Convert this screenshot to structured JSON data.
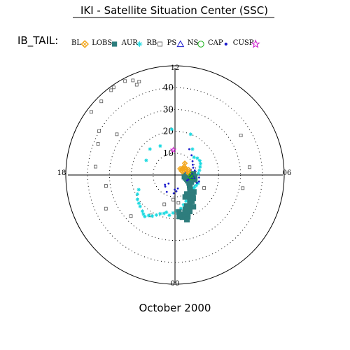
{
  "header": {
    "title": "IKI - Satellite Situation Center (SSC)",
    "period": "October 2000"
  },
  "legend": {
    "prefix": "IB_TAIL:",
    "items": [
      {
        "label": "BL",
        "marker": "diamond-star",
        "color": "#f2a51a"
      },
      {
        "label": "LOBS",
        "marker": "square-small",
        "color": "#2e7d7d"
      },
      {
        "label": "AUR",
        "marker": "asterisk",
        "color": "#19d9e0"
      },
      {
        "label": "RB",
        "marker": "square-open",
        "color": "#555555"
      },
      {
        "label": "PS",
        "marker": "triangle-open",
        "color": "#1a1acc"
      },
      {
        "label": "NS",
        "marker": "circle-open",
        "color": "#19b319"
      },
      {
        "label": "CAP",
        "marker": "dot",
        "color": "#1a1acc"
      },
      {
        "label": "CUSP",
        "marker": "star-open",
        "color": "#cc19cc"
      }
    ]
  },
  "chart_data": {
    "type": "scatter",
    "projection": "polar (magnetic local time vs radial distance)",
    "theta_ticks": [
      {
        "label": "12",
        "mlt": 12
      },
      {
        "label": "18",
        "mlt": 18
      },
      {
        "label": "06",
        "mlt": 6
      },
      {
        "label": "00",
        "mlt": 0
      }
    ],
    "r_ticks": [
      10,
      20,
      30,
      40
    ],
    "rlim": [
      0,
      50
    ],
    "grid": "dotted circles",
    "series": [
      {
        "name": "RB",
        "color": "#555555",
        "marker": "square-open",
        "points": [
          [
            35.2,
            59
          ],
          [
            34.3,
            84
          ],
          [
            31.6,
            101
          ],
          [
            14.6,
            114
          ],
          [
            12.8,
            173
          ],
          [
            11.3,
            184
          ],
          [
            14.3,
            200
          ],
          [
            21.6,
            211
          ],
          [
            27.6,
            227
          ],
          [
            35.2,
            244
          ],
          [
            32.0,
            261
          ],
          [
            36.6,
            276
          ],
          [
            38.0,
            292
          ],
          [
            40.2,
            300
          ],
          [
            32.5,
            305
          ],
          [
            48.0,
            307
          ],
          [
            47.7,
            315
          ],
          [
            48.6,
            323
          ],
          [
            49.0,
            325
          ],
          [
            48.7,
            332
          ],
          [
            44.9,
            337
          ],
          [
            45.8,
            339
          ],
          [
            47.4,
            336
          ]
        ]
      },
      {
        "name": "AUR",
        "color": "#19d9e0",
        "marker": "asterisk",
        "points": [
          [
            21.0,
            356
          ],
          [
            14.9,
            333
          ],
          [
            16.5,
            316
          ],
          [
            14.8,
            297
          ],
          [
            17.9,
            248
          ],
          [
            19.3,
            243
          ],
          [
            20.5,
            237
          ],
          [
            21.0,
            232
          ],
          [
            21.5,
            228
          ],
          [
            22.3,
            222
          ],
          [
            23.0,
            219
          ],
          [
            23.5,
            216
          ],
          [
            22.1,
            213
          ],
          [
            21.5,
            209
          ],
          [
            20.2,
            205
          ],
          [
            19.0,
            201
          ],
          [
            18.3,
            196
          ],
          [
            17.5,
            193
          ],
          [
            18.6,
            188
          ],
          [
            17.4,
            183
          ],
          [
            16.5,
            177
          ],
          [
            15.6,
            170
          ],
          [
            14.2,
            164
          ],
          [
            13.0,
            157
          ],
          [
            12.4,
            150
          ],
          [
            11.6,
            144
          ],
          [
            10.5,
            136
          ],
          [
            10.5,
            127
          ],
          [
            10.5,
            122
          ],
          [
            10.8,
            116
          ],
          [
            11.2,
            110
          ],
          [
            14.3,
            34
          ],
          [
            11.9,
            47
          ],
          [
            12.8,
            53
          ],
          [
            13.1,
            60
          ],
          [
            12.8,
            66
          ],
          [
            12.1,
            72
          ],
          [
            11.4,
            79
          ],
          [
            10.7,
            86
          ],
          [
            9.2,
            99
          ],
          [
            8.7,
            107
          ],
          [
            11.5,
            130
          ],
          [
            7.5,
            118
          ],
          [
            20.0,
            21
          ]
        ]
      },
      {
        "name": "PS",
        "color": "#1a1acc",
        "marker": "triangle-open",
        "points": [
          [
            7.5,
            89
          ],
          [
            8.3,
            97
          ],
          [
            6.8,
            86
          ]
        ]
      },
      {
        "name": "CAP",
        "color": "#1a1acc",
        "marker": "dot",
        "points": [
          [
            6.4,
            226
          ],
          [
            6.9,
            220
          ],
          [
            8.6,
            206
          ],
          [
            8.4,
            184
          ],
          [
            4.9,
            217
          ],
          [
            6.7,
            181
          ],
          [
            7.5,
            175
          ],
          [
            6.3,
            168
          ],
          [
            13.5,
            29
          ],
          [
            11.8,
            40
          ],
          [
            10.2,
            52
          ],
          [
            9.4,
            60
          ],
          [
            9.0,
            68
          ],
          [
            8.0,
            84
          ],
          [
            7.2,
            93
          ],
          [
            8.3,
            101
          ],
          [
            6.5,
            108
          ],
          [
            6.1,
            114
          ],
          [
            11.1,
            96
          ],
          [
            11.4,
            105
          ],
          [
            10.7,
            110
          ],
          [
            9.3,
            77
          ],
          [
            7.6,
            72
          ],
          [
            5.3,
            74
          ]
        ]
      },
      {
        "name": "BL",
        "color": "#f2a51a",
        "marker": "diamond-star",
        "points": [
          [
            3.5,
            57
          ],
          [
            4.6,
            48
          ],
          [
            4.3,
            53
          ],
          [
            5.7,
            48
          ],
          [
            5.7,
            56
          ],
          [
            3.8,
            66
          ],
          [
            5.6,
            62
          ],
          [
            6.7,
            69
          ],
          [
            6.4,
            77
          ],
          [
            6.2,
            83
          ],
          [
            7.0,
            40
          ],
          [
            3.7,
            39
          ]
        ]
      },
      {
        "name": "NS",
        "color": "#19b319",
        "marker": "circle-open",
        "points": [
          [
            7.5,
            88
          ],
          [
            6.9,
            95
          ],
          [
            7.6,
            100
          ]
        ]
      },
      {
        "name": "CUSP",
        "color": "#cc19cc",
        "marker": "star-open",
        "points": [
          [
            11.5,
            356
          ]
        ]
      },
      {
        "name": "LOBS",
        "color": "#2e7d7d",
        "marker": "square-small",
        "points": [
          [
            4.4,
            100
          ],
          [
            5.0,
            105
          ],
          [
            5.8,
            109
          ],
          [
            6.4,
            114
          ],
          [
            7.4,
            119
          ],
          [
            8.3,
            126
          ],
          [
            8.9,
            130
          ],
          [
            9.6,
            134
          ],
          [
            10.5,
            139
          ],
          [
            12.0,
            144
          ],
          [
            13.0,
            148
          ],
          [
            14.6,
            152
          ],
          [
            16.0,
            155
          ],
          [
            15.2,
            159
          ],
          [
            16.4,
            163
          ],
          [
            17.7,
            165
          ],
          [
            18.7,
            167
          ],
          [
            19.6,
            170
          ],
          [
            17.0,
            174
          ],
          [
            11.6,
            132
          ],
          [
            12.2,
            138
          ],
          [
            13.5,
            142
          ],
          [
            14.2,
            147
          ],
          [
            6.6,
            105
          ],
          [
            8.1,
            113
          ],
          [
            5.4,
            96
          ],
          [
            4.8,
            92
          ],
          [
            10.3,
            148
          ],
          [
            11.1,
            155
          ],
          [
            16.8,
            150
          ],
          [
            18.0,
            158
          ],
          [
            20.0,
            163
          ],
          [
            21.1,
            165
          ],
          [
            19.1,
            174
          ],
          [
            8.4,
            86
          ],
          [
            7.9,
            92
          ],
          [
            9.3,
            103
          ],
          [
            9.0,
            95
          ]
        ]
      }
    ]
  }
}
